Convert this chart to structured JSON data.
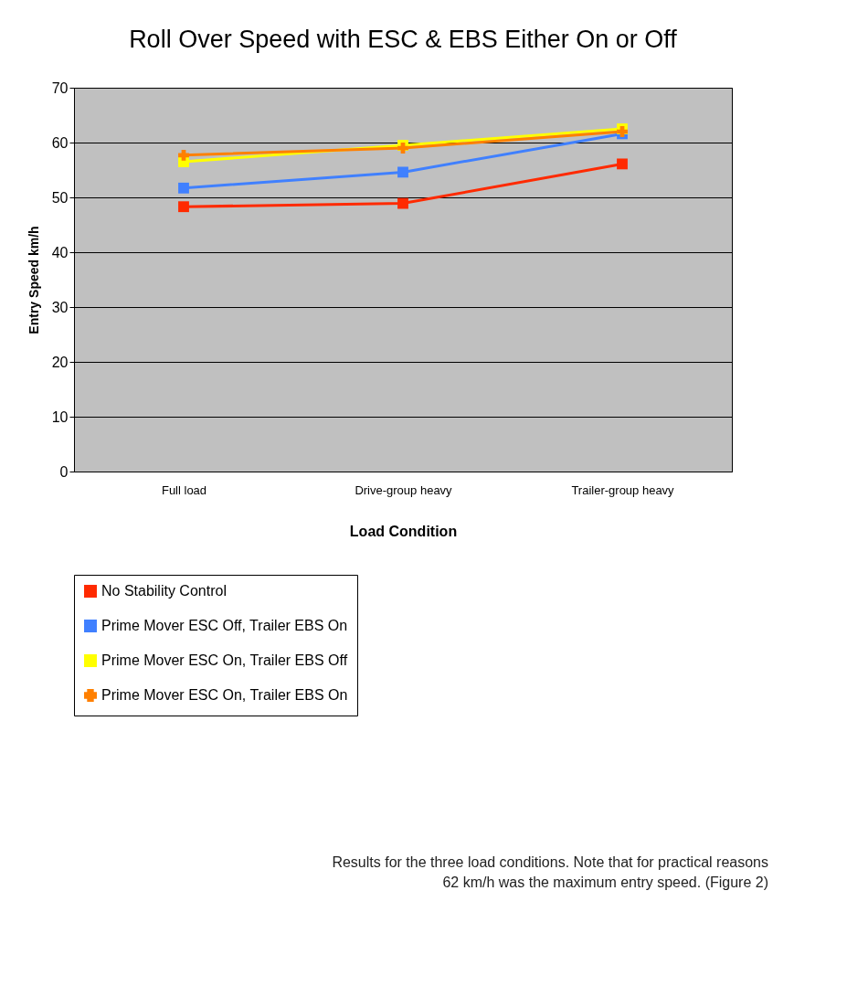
{
  "chart_data": {
    "type": "line",
    "title": "Roll Over Speed with ESC & EBS Either On or Off",
    "xlabel": "Load Condition",
    "ylabel": "Entry Speed km/h",
    "categories": [
      "Full load",
      "Drive-group heavy",
      "Trailer-group heavy"
    ],
    "series": [
      {
        "name": "No Stability Control",
        "color": "#ff2a00",
        "marker": "square",
        "values": [
          48.3,
          48.9,
          56.1
        ]
      },
      {
        "name": "Prime Mover ESC Off, Trailer EBS On",
        "color": "#4080ff",
        "marker": "square",
        "values": [
          51.7,
          54.6,
          61.6
        ]
      },
      {
        "name": "Prime Mover ESC On, Trailer EBS Off",
        "color": "#ffff00",
        "marker": "square",
        "values": [
          56.5,
          59.5,
          62.5
        ]
      },
      {
        "name": "Prime Mover ESC On, Trailer EBS On",
        "color": "#ff8000",
        "marker": "cross",
        "values": [
          57.7,
          59.0,
          62.0
        ]
      }
    ],
    "ylim": [
      0,
      70
    ],
    "yticks": [
      0,
      10,
      20,
      30,
      40,
      50,
      60,
      70
    ],
    "grid": "y",
    "legend": "bottom",
    "line_style": "solid",
    "annotations": [
      "Results for the three load conditions. Note that for practical reasons 62 km/h was the maximum entry speed. (Figure 2)"
    ]
  }
}
